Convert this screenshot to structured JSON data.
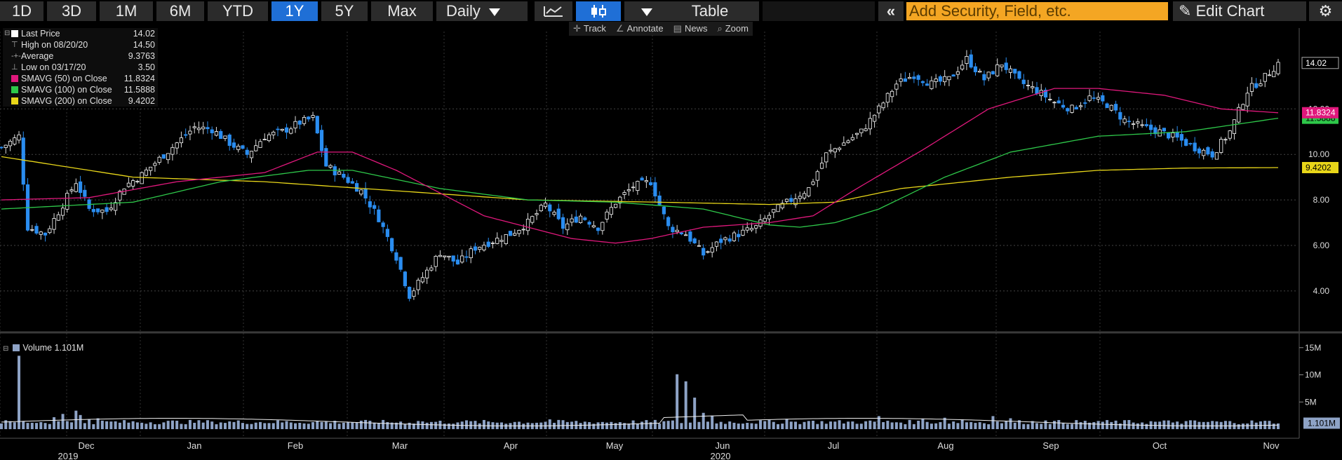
{
  "toolbar": {
    "periods": [
      "1D",
      "3D",
      "1M",
      "6M",
      "YTD",
      "1Y",
      "5Y",
      "Max"
    ],
    "active_period": "1Y",
    "frequency": "Daily",
    "table_label": "Table",
    "search_placeholder": "Add Security, Field, etc.",
    "edit_chart_label": "Edit Chart",
    "collapse_icon": "double-chevron-left-icon",
    "settings_icon": "gear-icon"
  },
  "subtools": {
    "track": "Track",
    "annotate": "Annotate",
    "news": "News",
    "zoom": "Zoom"
  },
  "legend": {
    "last_price_label": "Last Price",
    "last_price_value": "14.02",
    "high_label": "High on 08/20/20",
    "high_value": "14.50",
    "average_label": "Average",
    "average_value": "9.3763",
    "low_label": "Low on 03/17/20",
    "low_value": "3.50",
    "sma50_label": "SMAVG (50)  on Close",
    "sma50_value": "11.8324",
    "sma100_label": "SMAVG (100)  on Close",
    "sma100_value": "11.5888",
    "sma200_label": "SMAVG (200)  on Close",
    "sma200_value": "9.4202"
  },
  "volume_legend": {
    "label": "Volume",
    "value": "1.101M"
  },
  "colors": {
    "up": "#ffffff",
    "down": "#2a8df0",
    "sma50": "#e0187c",
    "sma100": "#2ec84a",
    "sma200": "#e8d619",
    "volume": "#8ea3c6",
    "accent": "#f4a623",
    "active": "#1f6fd6"
  },
  "chart_data": {
    "type": "candlestick",
    "price_axis": {
      "ticks": [
        "4.00",
        "6.00",
        "8.00",
        "10.00",
        "12.00"
      ],
      "ylim": [
        2.3,
        15.4
      ]
    },
    "volume_axis": {
      "ticks": [
        "5M",
        "10M",
        "15M"
      ],
      "ylim": [
        0,
        16
      ]
    },
    "price_labels": {
      "last": "14.02",
      "sma50": "11.8324",
      "sma100": "11.5888",
      "sma200": "9.4202"
    },
    "volume_label": "1.101M",
    "month_labels": [
      "Dec",
      "Jan",
      "Feb",
      "Mar",
      "Apr",
      "May",
      "Jun",
      "Jul",
      "Aug",
      "Sep",
      "Oct",
      "Nov"
    ],
    "year_labels": [
      "2019",
      "2020"
    ],
    "close_path": [
      [
        0,
        10.3
      ],
      [
        4,
        10.8
      ],
      [
        6,
        6.8
      ],
      [
        10,
        6.5
      ],
      [
        14,
        7.8
      ],
      [
        17,
        8.8
      ],
      [
        20,
        7.6
      ],
      [
        24,
        7.5
      ],
      [
        28,
        8.6
      ],
      [
        32,
        9.1
      ],
      [
        36,
        9.8
      ],
      [
        40,
        10.5
      ],
      [
        44,
        11.2
      ],
      [
        48,
        11.1
      ],
      [
        52,
        10.5
      ],
      [
        56,
        10.0
      ],
      [
        60,
        10.8
      ],
      [
        64,
        11.0
      ],
      [
        68,
        11.4
      ],
      [
        71,
        11.6
      ],
      [
        74,
        9.5
      ],
      [
        78,
        9.0
      ],
      [
        82,
        8.4
      ],
      [
        86,
        7.2
      ],
      [
        90,
        5.5
      ],
      [
        93,
        3.8
      ],
      [
        96,
        4.6
      ],
      [
        100,
        5.7
      ],
      [
        104,
        5.2
      ],
      [
        108,
        5.9
      ],
      [
        112,
        6.2
      ],
      [
        116,
        6.5
      ],
      [
        120,
        7.0
      ],
      [
        124,
        7.8
      ],
      [
        128,
        6.8
      ],
      [
        132,
        7.3
      ],
      [
        136,
        6.8
      ],
      [
        140,
        7.9
      ],
      [
        144,
        8.6
      ],
      [
        148,
        8.8
      ],
      [
        152,
        6.8
      ],
      [
        156,
        6.5
      ],
      [
        160,
        5.6
      ],
      [
        164,
        6.2
      ],
      [
        168,
        6.5
      ],
      [
        172,
        6.8
      ],
      [
        176,
        7.5
      ],
      [
        180,
        8.0
      ],
      [
        184,
        8.5
      ],
      [
        188,
        10.0
      ],
      [
        192,
        10.5
      ],
      [
        196,
        11.0
      ],
      [
        200,
        12.0
      ],
      [
        204,
        13.1
      ],
      [
        208,
        13.5
      ],
      [
        212,
        13.1
      ],
      [
        216,
        13.3
      ],
      [
        220,
        14.2
      ],
      [
        224,
        13.3
      ],
      [
        228,
        14.0
      ],
      [
        232,
        13.2
      ],
      [
        236,
        12.8
      ],
      [
        240,
        12.3
      ],
      [
        244,
        12.0
      ],
      [
        248,
        12.5
      ],
      [
        252,
        12.2
      ],
      [
        256,
        11.5
      ],
      [
        260,
        11.2
      ],
      [
        264,
        11.0
      ],
      [
        268,
        10.7
      ],
      [
        272,
        10.3
      ],
      [
        276,
        10.0
      ],
      [
        280,
        11.0
      ],
      [
        284,
        12.8
      ],
      [
        288,
        13.4
      ],
      [
        291,
        14.02
      ]
    ],
    "sma50_path": [
      [
        0,
        8.0
      ],
      [
        20,
        8.1
      ],
      [
        40,
        8.8
      ],
      [
        60,
        9.2
      ],
      [
        72,
        10.1
      ],
      [
        80,
        10.1
      ],
      [
        90,
        9.3
      ],
      [
        100,
        8.3
      ],
      [
        110,
        7.3
      ],
      [
        120,
        6.8
      ],
      [
        130,
        6.3
      ],
      [
        140,
        6.1
      ],
      [
        148,
        6.3
      ],
      [
        160,
        6.8
      ],
      [
        175,
        7.0
      ],
      [
        185,
        7.3
      ],
      [
        195,
        8.5
      ],
      [
        210,
        10.2
      ],
      [
        225,
        12.0
      ],
      [
        240,
        12.9
      ],
      [
        250,
        12.9
      ],
      [
        265,
        12.6
      ],
      [
        278,
        12.0
      ],
      [
        291,
        11.83
      ]
    ],
    "sma100_path": [
      [
        0,
        7.6
      ],
      [
        30,
        7.9
      ],
      [
        50,
        8.8
      ],
      [
        70,
        9.3
      ],
      [
        80,
        9.3
      ],
      [
        100,
        8.5
      ],
      [
        120,
        8.0
      ],
      [
        140,
        7.9
      ],
      [
        160,
        7.6
      ],
      [
        175,
        6.9
      ],
      [
        182,
        6.8
      ],
      [
        190,
        7.0
      ],
      [
        200,
        7.6
      ],
      [
        215,
        9.0
      ],
      [
        230,
        10.1
      ],
      [
        250,
        10.8
      ],
      [
        270,
        11.0
      ],
      [
        291,
        11.59
      ]
    ],
    "sma200_path": [
      [
        0,
        9.9
      ],
      [
        30,
        9.0
      ],
      [
        60,
        8.8
      ],
      [
        90,
        8.4
      ],
      [
        120,
        8.0
      ],
      [
        150,
        7.9
      ],
      [
        175,
        7.8
      ],
      [
        190,
        7.9
      ],
      [
        205,
        8.5
      ],
      [
        230,
        9.0
      ],
      [
        250,
        9.3
      ],
      [
        270,
        9.4
      ],
      [
        291,
        9.42
      ]
    ]
  }
}
